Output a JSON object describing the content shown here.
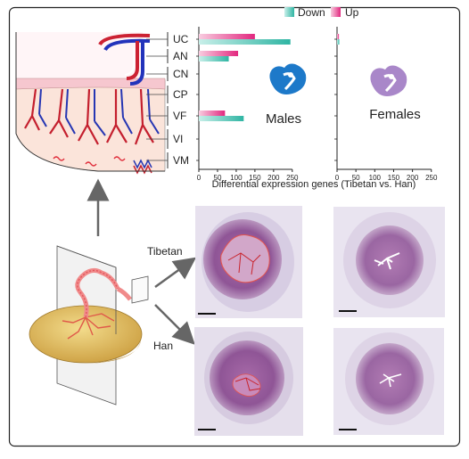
{
  "legend": {
    "down_label": "Down",
    "up_label": "Up",
    "down_color": "#3dbfae",
    "up_color": "#e7338a"
  },
  "placenta_regions": [
    "UC",
    "AN",
    "CN",
    "CP",
    "VF",
    "VI",
    "VM"
  ],
  "chart_data": [
    {
      "type": "bar",
      "panel": "Males",
      "categories": [
        "UC",
        "AN",
        "CN",
        "CP",
        "VF",
        "VI",
        "VM"
      ],
      "series": [
        {
          "name": "Up",
          "values": [
            150,
            105,
            0,
            0,
            70,
            0,
            0
          ]
        },
        {
          "name": "Down",
          "values": [
            245,
            80,
            0,
            0,
            120,
            0,
            0
          ]
        }
      ],
      "x_ticks": [
        0,
        50,
        100,
        150,
        200,
        250
      ],
      "xlim": [
        0,
        260
      ],
      "label": "Males"
    },
    {
      "type": "bar",
      "panel": "Females",
      "categories": [
        "UC",
        "AN",
        "CN",
        "CP",
        "VF",
        "VI",
        "VM"
      ],
      "series": [
        {
          "name": "Up",
          "values": [
            5,
            0,
            0,
            0,
            0,
            0,
            0
          ]
        },
        {
          "name": "Down",
          "values": [
            6,
            0,
            0,
            0,
            0,
            0,
            0
          ]
        }
      ],
      "x_ticks": [
        0,
        50,
        100,
        150,
        200,
        250
      ],
      "xlim": [
        0,
        260
      ],
      "label": "Females"
    }
  ],
  "xlabel": "Differential expression genes (Tibetan vs. Han)",
  "sections": {
    "tibetan": "Tibetan",
    "han": "Han"
  }
}
